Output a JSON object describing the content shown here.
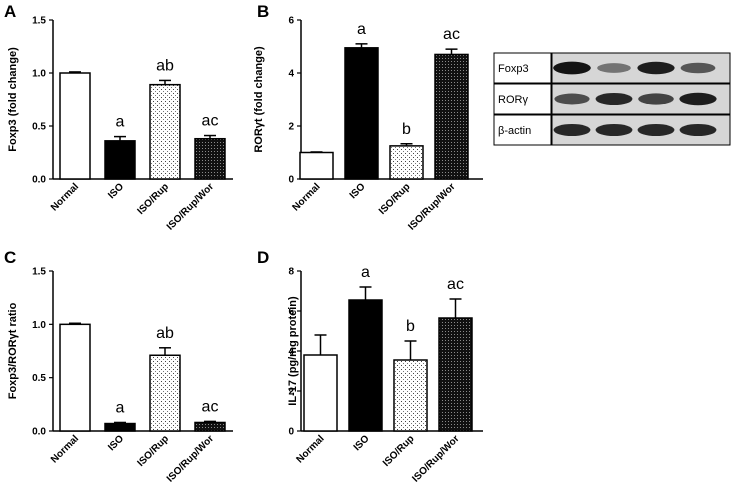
{
  "chart_data": [
    {
      "panel": "A",
      "type": "bar",
      "ylabel": "Foxp3 (fold change)",
      "categories": [
        "Normal",
        "ISO",
        "ISO/Rup",
        "ISO/Rup/Wor"
      ],
      "values": [
        1.0,
        0.36,
        0.89,
        0.38
      ],
      "errors": [
        0.01,
        0.04,
        0.04,
        0.03
      ],
      "annotations": [
        "",
        "a",
        "ab",
        "ac"
      ],
      "fills": [
        "white",
        "black",
        "dots",
        "dense"
      ],
      "ylim": [
        0,
        1.5
      ],
      "yticks": [
        "0.0",
        "0.5",
        "1.0",
        "1.5"
      ]
    },
    {
      "panel": "B",
      "type": "bar",
      "ylabel": "RORγt (fold change)",
      "categories": [
        "Normal",
        "ISO",
        "ISO/Rup",
        "ISO/Rup/Wor"
      ],
      "values": [
        1.0,
        4.95,
        1.25,
        4.7
      ],
      "errors": [
        0.02,
        0.15,
        0.08,
        0.2
      ],
      "annotations": [
        "",
        "a",
        "b",
        "ac"
      ],
      "fills": [
        "white",
        "black",
        "dots",
        "dense"
      ],
      "ylim": [
        0,
        6
      ],
      "yticks": [
        "0",
        "2",
        "4",
        "6"
      ]
    },
    {
      "panel": "C",
      "type": "bar",
      "ylabel": "Foxp3/RORγt ratio",
      "categories": [
        "Normal",
        "ISO",
        "ISO/Rup",
        "ISO/Rup/Wor"
      ],
      "values": [
        1.0,
        0.07,
        0.71,
        0.08
      ],
      "errors": [
        0.01,
        0.01,
        0.07,
        0.01
      ],
      "annotations": [
        "",
        "a",
        "ab",
        "ac"
      ],
      "fills": [
        "white",
        "black",
        "dots",
        "dense"
      ],
      "ylim": [
        0,
        1.5
      ],
      "yticks": [
        "0.0",
        "0.5",
        "1.0",
        "1.5"
      ]
    },
    {
      "panel": "D",
      "type": "bar",
      "ylabel": "IL-17 (pg/mg protein)",
      "categories": [
        "Normal",
        "ISO",
        "ISO/Rup",
        "ISO/Rup/Wor"
      ],
      "values": [
        3.8,
        6.55,
        3.55,
        5.65
      ],
      "errors": [
        1.0,
        0.65,
        0.95,
        0.95
      ],
      "annotations": [
        "",
        "a",
        "b",
        "ac"
      ],
      "fills": [
        "white",
        "black",
        "dots",
        "dense"
      ],
      "ylim": [
        0,
        8
      ],
      "yticks": [
        "0",
        "2",
        "4",
        "6",
        "8"
      ]
    }
  ],
  "blot": {
    "labels": [
      "Foxp3",
      "RORγ",
      "β-actin"
    ],
    "lanes": 4,
    "intensities": [
      [
        0.95,
        0.45,
        0.9,
        0.6
      ],
      [
        0.65,
        0.85,
        0.7,
        0.9
      ],
      [
        0.85,
        0.85,
        0.85,
        0.85
      ]
    ]
  }
}
